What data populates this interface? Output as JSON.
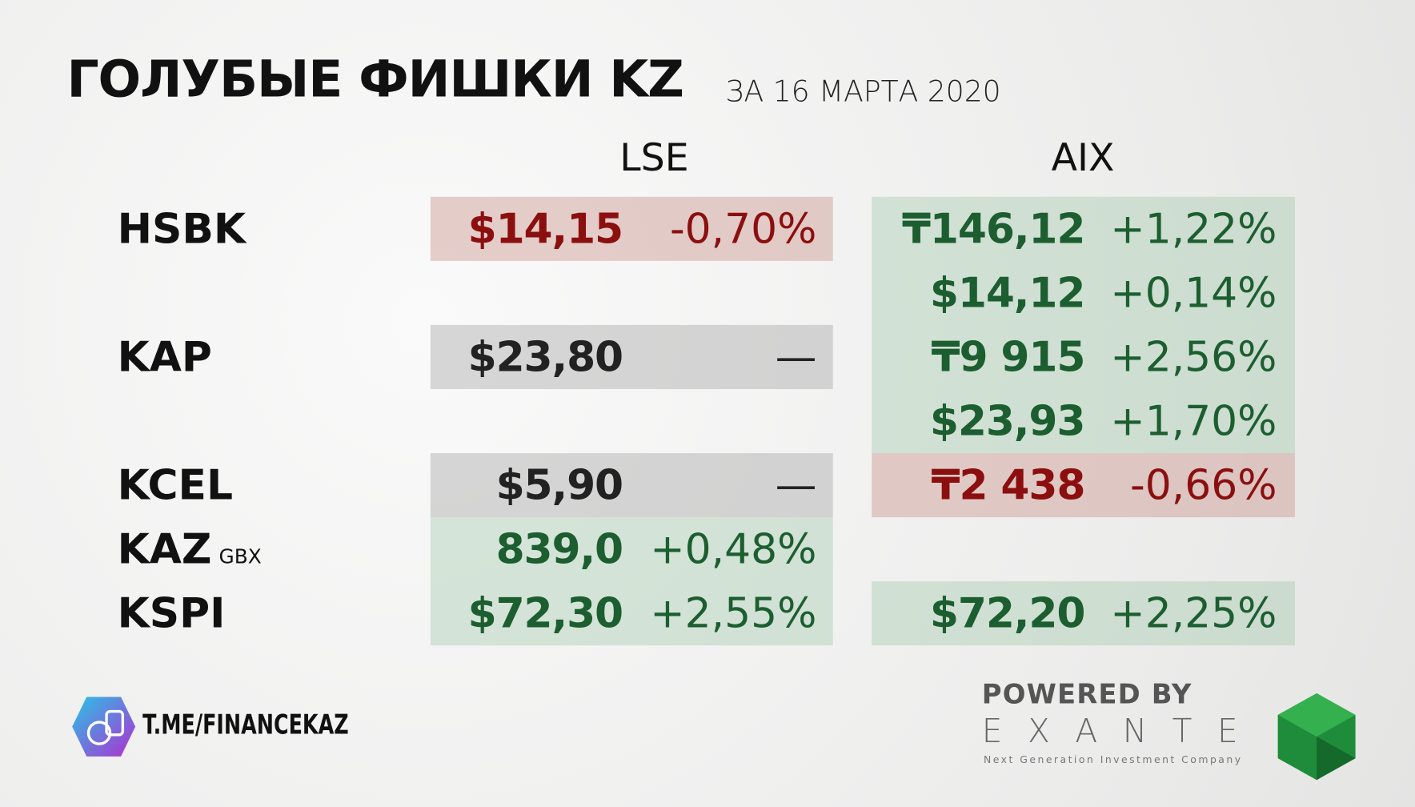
{
  "header": {
    "title": "ГОЛУБЫЕ ФИШКИ KZ",
    "subtitle": "ЗА 16 МАРТА 2020"
  },
  "columns": [
    "LSE",
    "AIX"
  ],
  "table": {
    "rows": [
      {
        "ticker": "HSBK",
        "lse": {
          "price": "$14,15",
          "change": "-0,70%",
          "tone": "down"
        },
        "aix": {
          "price": "₸146,12",
          "change": "+1,22%",
          "tone": "up"
        }
      },
      {
        "aix": {
          "price": "$14,12",
          "change": "+0,14%",
          "tone": "up"
        }
      },
      {
        "ticker": "KAP",
        "lse": {
          "price": "$23,80",
          "change": "—",
          "tone": "flat"
        },
        "aix": {
          "price": "₸9 915",
          "change": "+2,56%",
          "tone": "up"
        }
      },
      {
        "aix": {
          "price": "$23,93",
          "change": "+1,70%",
          "tone": "up"
        }
      },
      {
        "ticker": "KCEL",
        "lse": {
          "price": "$5,90",
          "change": "—",
          "tone": "flat"
        },
        "aix": {
          "price": "₸2 438",
          "change": "-0,66%",
          "tone": "down"
        }
      },
      {
        "ticker": "KAZ",
        "unit": "GBX",
        "lse": {
          "price": "839,0",
          "change": "+0,48%",
          "tone": "up"
        }
      },
      {
        "ticker": "KSPI",
        "lse": {
          "price": "$72,30",
          "change": "+2,55%",
          "tone": "up"
        },
        "aix": {
          "price": "$72,20",
          "change": "+2,25%",
          "tone": "up"
        }
      }
    ]
  },
  "footer": {
    "channel": "T.ME/FINANCEKAZ",
    "powered": "POWERED BY",
    "brand": "EXANTE",
    "tagline": "Next Generation Investment Company"
  }
}
